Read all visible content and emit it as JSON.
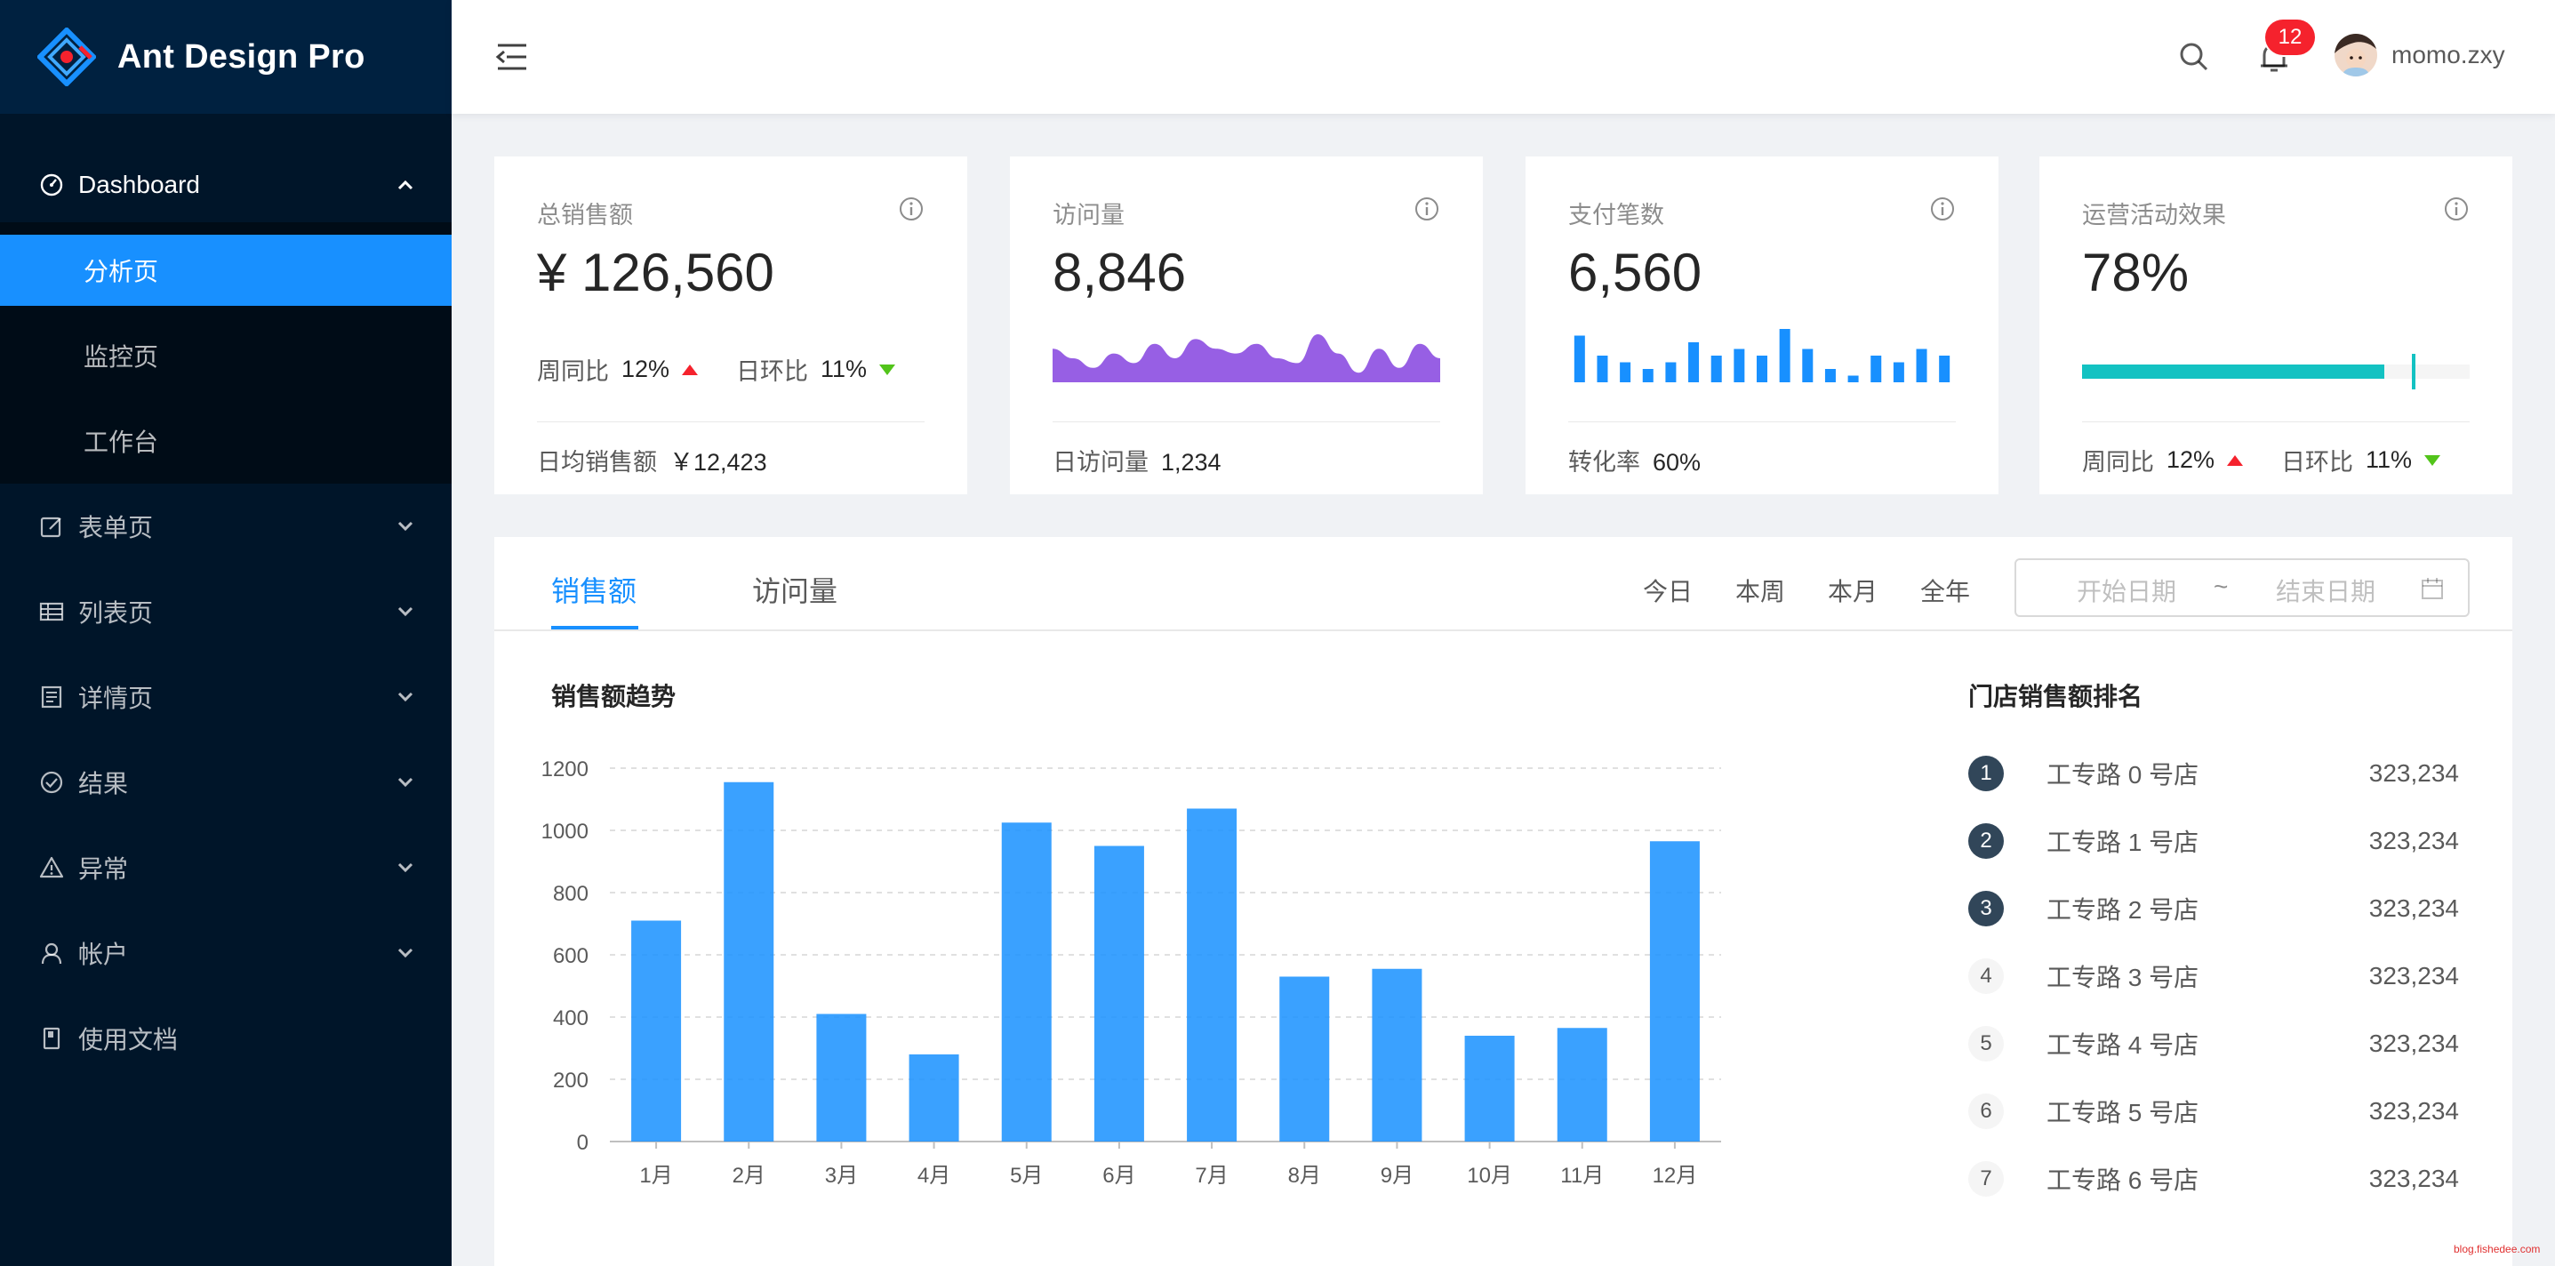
{
  "app": {
    "title": "Ant Design Pro"
  },
  "sidebar": {
    "dashboard_label": "Dashboard",
    "dashboard_children": [
      "分析页",
      "监控页",
      "工作台"
    ],
    "items": [
      {
        "label": "表单页",
        "icon": "form-icon"
      },
      {
        "label": "列表页",
        "icon": "table-icon"
      },
      {
        "label": "详情页",
        "icon": "profile-icon"
      },
      {
        "label": "结果",
        "icon": "check-circle-icon"
      },
      {
        "label": "异常",
        "icon": "warning-icon"
      },
      {
        "label": "帐户",
        "icon": "user-icon"
      },
      {
        "label": "使用文档",
        "icon": "book-icon"
      }
    ]
  },
  "header": {
    "notification_count": "12",
    "username": "momo.zxy"
  },
  "cards": {
    "sales": {
      "title": "总销售额",
      "value": "¥ 126,560",
      "wow_label": "周同比",
      "wow_value": "12%",
      "dod_label": "日环比",
      "dod_value": "11%",
      "footer_label": "日均销售额",
      "footer_value": "￥12,423"
    },
    "visits": {
      "title": "访问量",
      "value": "8,846",
      "footer_label": "日访问量",
      "footer_value": "1,234"
    },
    "payments": {
      "title": "支付笔数",
      "value": "6,560",
      "footer_label": "转化率",
      "footer_value": "60%"
    },
    "operations": {
      "title": "运营活动效果",
      "value": "78%",
      "progress": 0.78,
      "target": 0.85,
      "wow_label": "周同比",
      "wow_value": "12%",
      "dod_label": "日环比",
      "dod_value": "11%"
    }
  },
  "panel": {
    "tabs": [
      "销售额",
      "访问量"
    ],
    "ranges": [
      "今日",
      "本周",
      "本月",
      "全年"
    ],
    "start_placeholder": "开始日期",
    "separator": "~",
    "end_placeholder": "结束日期",
    "chart_title": "销售额趋势",
    "rank_title": "门店销售额排名",
    "ranking": [
      {
        "rank": "1",
        "name": "工专路 0 号店",
        "value": "323,234"
      },
      {
        "rank": "2",
        "name": "工专路 1 号店",
        "value": "323,234"
      },
      {
        "rank": "3",
        "name": "工专路 2 号店",
        "value": "323,234"
      },
      {
        "rank": "4",
        "name": "工专路 3 号店",
        "value": "323,234"
      },
      {
        "rank": "5",
        "name": "工专路 4 号店",
        "value": "323,234"
      },
      {
        "rank": "6",
        "name": "工专路 5 号店",
        "value": "323,234"
      },
      {
        "rank": "7",
        "name": "工专路 6 号店",
        "value": "323,234"
      }
    ]
  },
  "chart_data": {
    "type": "bar",
    "categories": [
      "1月",
      "2月",
      "3月",
      "4月",
      "5月",
      "6月",
      "7月",
      "8月",
      "9月",
      "10月",
      "11月",
      "12月"
    ],
    "values": [
      710,
      1155,
      410,
      280,
      1025,
      950,
      1070,
      530,
      555,
      340,
      365,
      965
    ],
    "ylim": [
      0,
      1200
    ],
    "yticks": [
      0,
      200,
      400,
      600,
      800,
      1000,
      1200
    ],
    "grid": true,
    "color": "#1890ff"
  },
  "mini_charts": {
    "visits_area": [
      7,
      5,
      3,
      6,
      4,
      8,
      5,
      9,
      7,
      6,
      8,
      5,
      4,
      10,
      6,
      2,
      7,
      3,
      8,
      5
    ],
    "payments_bars": [
      7,
      4,
      3,
      2,
      3,
      6,
      4,
      5,
      4,
      8,
      5,
      2,
      1,
      4,
      3,
      5,
      4
    ],
    "area_color": "#975fe4",
    "bar_color": "#1890ff",
    "progress_color": "#13c2c2"
  },
  "watermark": "blog.fishedee.com"
}
